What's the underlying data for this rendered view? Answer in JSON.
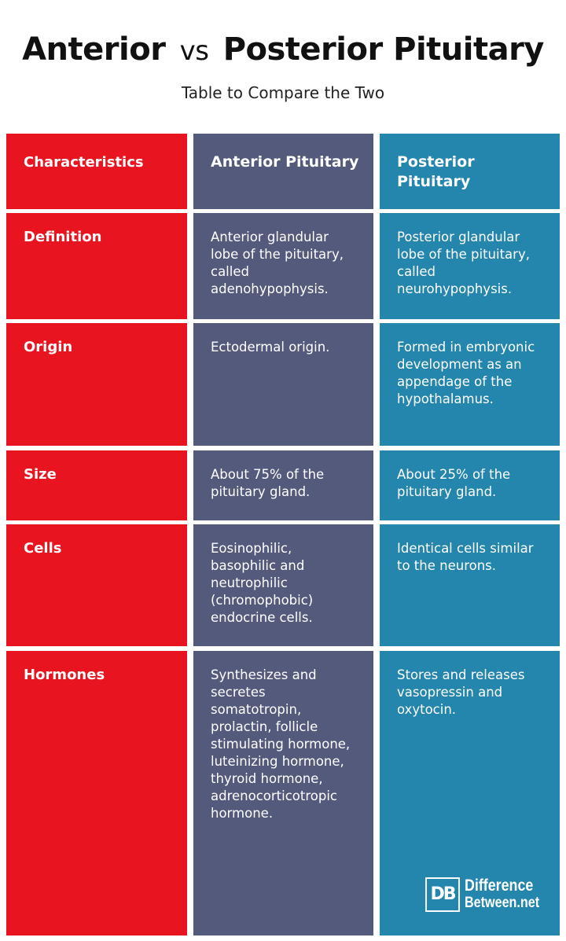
{
  "header": {
    "title_a": "Anterior",
    "title_vs": "vs",
    "title_b": "Posterior Pituitary",
    "subtitle": "Table to Compare the Two"
  },
  "table": {
    "columns": [
      "Characteristics",
      "Anterior Pituitary",
      "Posterior Pituitary"
    ],
    "rows": [
      [
        "Definition",
        "Anterior glandular lobe of the pituitary, called adenohypophysis.",
        "Posterior glandular lobe of the pituitary, called neurohypophysis."
      ],
      [
        "Origin",
        "Ectodermal origin.",
        "Formed in embryonic development as an appendage of the hypothalamus."
      ],
      [
        "Size",
        "About 75% of the pituitary gland.",
        "About 25% of the pituitary gland."
      ],
      [
        "Cells",
        "Eosinophilic, basophilic and neutrophilic (chromophobic) endocrine cells.",
        "Identical cells similar to the neurons."
      ],
      [
        "Hormones",
        "Synthesizes and secretes somatotropin, prolactin, follicle stimulating hormone, luteinizing hormone, thyroid hormone, adrenocorticotropic hormone.",
        "Stores and releases vasopressin and oxytocin."
      ]
    ]
  },
  "logo": {
    "mark": "DB",
    "line1": "Difference",
    "line2": "Between.net"
  },
  "colors": {
    "characteristics_column": "#e8141f",
    "anterior_column": "#535a7c",
    "posterior_column": "#2485ad"
  }
}
